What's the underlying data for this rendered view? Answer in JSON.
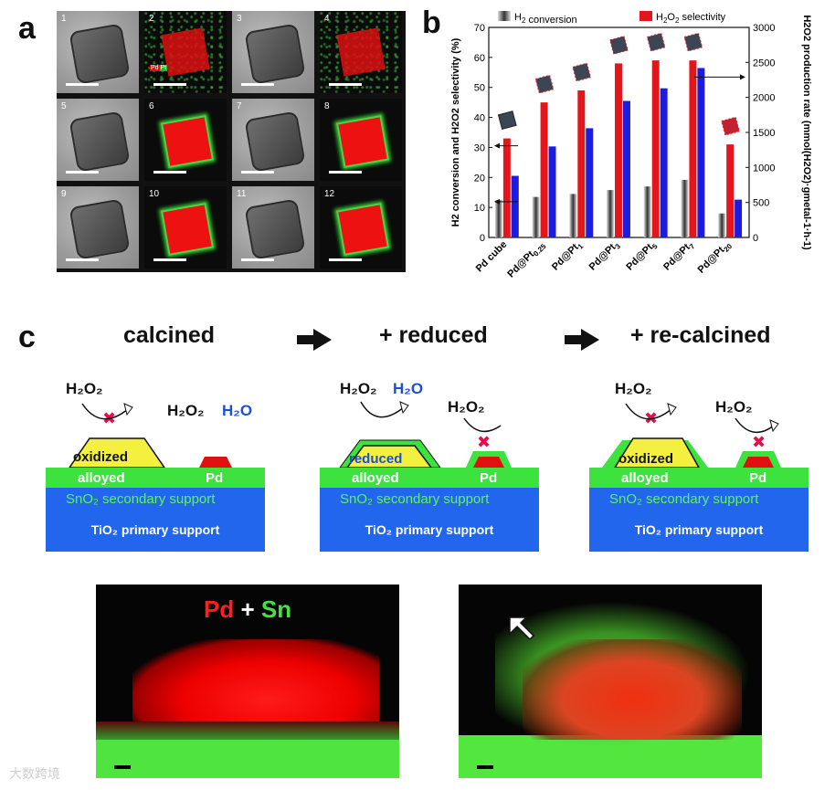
{
  "panel_labels": {
    "a": "a",
    "b": "b",
    "c": "c"
  },
  "panel_a": {
    "tiles": [
      "1",
      "2",
      "3",
      "4",
      "5",
      "6",
      "7",
      "8",
      "9",
      "10",
      "11",
      "12"
    ],
    "legend_pd": "Pd",
    "legend_pt": "Pt"
  },
  "chart_data": {
    "type": "bar",
    "categories": [
      "Pd cube",
      "Pd@Pt0.25",
      "Pd@Pt1",
      "Pd@Pt3",
      "Pd@Pt5",
      "Pd@Pt7",
      "Pd@Pt20"
    ],
    "category_labels": [
      {
        "main": "Pd cube",
        "sub": ""
      },
      {
        "main": "Pd@Pt",
        "sub": "0.25"
      },
      {
        "main": "Pd@Pt",
        "sub": "1"
      },
      {
        "main": "Pd@Pt",
        "sub": "3"
      },
      {
        "main": "Pd@Pt",
        "sub": "5"
      },
      {
        "main": "Pd@Pt",
        "sub": "7"
      },
      {
        "main": "Pd@Pt",
        "sub": "20"
      }
    ],
    "series": [
      {
        "name": "H2 conversion",
        "legend_main": "H",
        "legend_sub": "2",
        "legend_rest": " conversion",
        "axis": "left",
        "color": "#3a3a3a",
        "values": [
          12.5,
          13.5,
          14.5,
          15.8,
          17.0,
          19.2,
          8.0
        ]
      },
      {
        "name": "H2O2 selectivity",
        "legend_main": "H",
        "legend_sub": "2",
        "legend_rest": "O",
        "legend_sub2": "2",
        "legend_rest2": " selectivity",
        "axis": "left",
        "color": "#e3161b",
        "values": [
          33,
          45,
          49,
          58,
          59,
          59,
          31
        ]
      },
      {
        "name": "H2O2 production rate",
        "axis": "right",
        "color": "#1c1ce0",
        "values": [
          880,
          1300,
          1560,
          1950,
          2130,
          2420,
          540
        ]
      }
    ],
    "ylabel_left": "H2 conversion and H2O2 selectivity (%)",
    "ylabel_right": "H2O2 production rate (mmol(H2O2)·gmetal-1·h-1)",
    "ylim_left": [
      0,
      70
    ],
    "ylim_right": [
      0,
      3000
    ],
    "yticks_left": [
      0,
      10,
      20,
      30,
      40,
      50,
      60,
      70
    ],
    "yticks_right": [
      0,
      500,
      1000,
      1500,
      2000,
      2500,
      3000
    ]
  },
  "panel_c": {
    "step1": "calcined",
    "step2": "+ reduced",
    "step3": "+ re-calcined",
    "scheme1": {
      "big_particle": "oxidized",
      "alloy": "alloyed",
      "pd": "Pd",
      "sno2": "SnO₂ secondary support",
      "tio2": "TiO₂ primary support",
      "left_reactant": "H₂O₂",
      "right_reactant": "H₂O₂",
      "right_product": "H₂O"
    },
    "scheme2": {
      "big_particle": "reduced",
      "alloy": "alloyed",
      "pd": "Pd",
      "sno2": "SnO₂ secondary support",
      "tio2": "TiO₂ primary support",
      "left_reactant": "H₂O₂",
      "left_product": "H₂O",
      "right_reactant": "H₂O₂"
    },
    "scheme3": {
      "big_particle": "oxidized",
      "alloy": "alloyed",
      "pd": "Pd",
      "sno2": "SnO₂ secondary support",
      "tio2": "TiO₂ primary support",
      "left_reactant": "H₂O₂",
      "right_reactant": "H₂O₂"
    },
    "eds_left_label_pd": "Pd",
    "eds_left_label_plus": "+",
    "eds_left_label_sn": "Sn"
  },
  "watermark": "大数跨境"
}
